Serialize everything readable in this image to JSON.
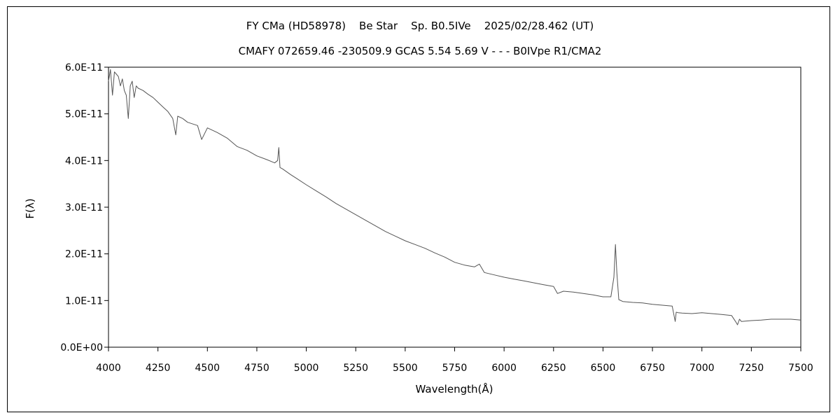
{
  "chart_data": {
    "type": "line",
    "title_line1": "FY CMa (HD58978)    Be Star    Sp. B0.5IVe    2025/02/28.462 (UT)",
    "title_line2": "CMAFY 072659.46 -230509.9 GCAS 5.54 5.69 V - - - B0IVpe R1/CMA2",
    "xlabel": "Wavelength(Å)",
    "ylabel": "F(λ)",
    "xlim": [
      4000,
      7500
    ],
    "ylim": [
      0,
      6e-11
    ],
    "x_ticks": [
      "4000",
      "4250",
      "4500",
      "4750",
      "5000",
      "5250",
      "5500",
      "5750",
      "6000",
      "6250",
      "6500",
      "6750",
      "7000",
      "7250",
      "7500"
    ],
    "y_ticks": [
      "0.0E+00",
      "1.0E-11",
      "2.0E-11",
      "3.0E-11",
      "4.0E-11",
      "5.0E-11",
      "6.0E-11"
    ],
    "grid": false,
    "legend": "none",
    "line_color": "#555555",
    "series": [
      {
        "x": [
          4000,
          4010,
          4020,
          4030,
          4040,
          4050,
          4060,
          4070,
          4080,
          4090,
          4100,
          4110,
          4120,
          4130,
          4140,
          4150,
          4175,
          4200,
          4225,
          4250,
          4275,
          4300,
          4325,
          4340,
          4350,
          4375,
          4400,
          4450,
          4471,
          4500,
          4550,
          4600,
          4650,
          4700,
          4750,
          4800,
          4840,
          4855,
          4861,
          4867,
          4880,
          4920,
          4950,
          5000,
          5050,
          5100,
          5150,
          5200,
          5250,
          5300,
          5350,
          5400,
          5450,
          5500,
          5550,
          5600,
          5650,
          5700,
          5750,
          5800,
          5850,
          5875,
          5900,
          5950,
          6000,
          6050,
          6100,
          6150,
          6200,
          6250,
          6270,
          6300,
          6350,
          6400,
          6450,
          6500,
          6540,
          6555,
          6563,
          6570,
          6580,
          6600,
          6650,
          6700,
          6750,
          6800,
          6850,
          6865,
          6870,
          6880,
          6900,
          6950,
          7000,
          7050,
          7100,
          7150,
          7170,
          7180,
          7190,
          7200,
          7250,
          7300,
          7350,
          7400,
          7450,
          7500
        ],
        "y": [
          5.7e-11,
          5.95e-11,
          5.4e-11,
          5.9e-11,
          5.85e-11,
          5.8e-11,
          5.6e-11,
          5.75e-11,
          5.5e-11,
          5.4e-11,
          4.9e-11,
          5.6e-11,
          5.7e-11,
          5.35e-11,
          5.6e-11,
          5.55e-11,
          5.5e-11,
          5.42e-11,
          5.35e-11,
          5.25e-11,
          5.15e-11,
          5.05e-11,
          4.9e-11,
          4.55e-11,
          4.95e-11,
          4.9e-11,
          4.82e-11,
          4.75e-11,
          4.45e-11,
          4.7e-11,
          4.6e-11,
          4.48e-11,
          4.3e-11,
          4.22e-11,
          4.1e-11,
          4.02e-11,
          3.95e-11,
          4e-11,
          4.28e-11,
          3.85e-11,
          3.82e-11,
          3.7e-11,
          3.62e-11,
          3.48e-11,
          3.35e-11,
          3.22e-11,
          3.08e-11,
          2.96e-11,
          2.84e-11,
          2.72e-11,
          2.6e-11,
          2.48e-11,
          2.38e-11,
          2.28e-11,
          2.2e-11,
          2.12e-11,
          2.02e-11,
          1.93e-11,
          1.82e-11,
          1.76e-11,
          1.72e-11,
          1.78e-11,
          1.6e-11,
          1.55e-11,
          1.5e-11,
          1.46e-11,
          1.42e-11,
          1.38e-11,
          1.34e-11,
          1.3e-11,
          1.15e-11,
          1.2e-11,
          1.18e-11,
          1.15e-11,
          1.12e-11,
          1.08e-11,
          1.08e-11,
          1.5e-11,
          2.2e-11,
          1.6e-11,
          1.02e-11,
          9.8e-12,
          9.6e-12,
          9.5e-12,
          9.2e-12,
          9e-12,
          8.8e-12,
          5.5e-12,
          7.5e-12,
          7.4e-12,
          7.3e-12,
          7.2e-12,
          7.4e-12,
          7.2e-12,
          7e-12,
          6.8e-12,
          5.5e-12,
          4.8e-12,
          6e-12,
          5.5e-12,
          5.7e-12,
          5.8e-12,
          6e-12,
          6e-12,
          6e-12,
          5.8e-12
        ]
      }
    ]
  }
}
